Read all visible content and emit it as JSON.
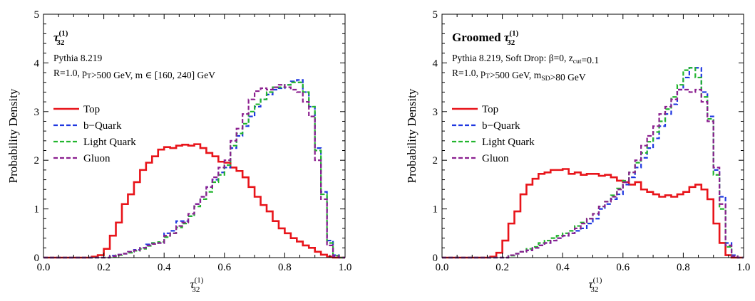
{
  "charts": [
    {
      "panel": "left",
      "title": {
        "prefix": "",
        "tau": "τ",
        "sub": "32",
        "sup": "(1)"
      },
      "annotations": [
        "Pythia 8.219",
        "R=1.0, p_T>500 GeV, m ∈ [160, 240] GeV"
      ],
      "ylabel": "Probability Density",
      "xlabel": {
        "tau": "τ",
        "sub": "32",
        "sup": "(1)"
      }
    },
    {
      "panel": "right",
      "title": {
        "prefix": "Groomed ",
        "tau": "τ",
        "sub": "32",
        "sup": "(1)"
      },
      "annotations": [
        "Pythia 8.219, Soft Drop: β=0, z_cut=0.1",
        "R=1.0, p_T>500 GeV, m_SD>80 GeV"
      ],
      "ylabel": "Probability Density",
      "xlabel": {
        "tau": "τ",
        "sub": "32",
        "sup": "(1)"
      }
    }
  ],
  "chart_data": [
    {
      "type": "line",
      "step": true,
      "xlim": [
        0.0,
        1.0
      ],
      "ylim": [
        0,
        5
      ],
      "xticks": [
        "0.0",
        "0.2",
        "0.4",
        "0.6",
        "0.8",
        "1.0"
      ],
      "yticks": [
        "0",
        "1",
        "2",
        "3",
        "4",
        "5"
      ],
      "bin_edges": [
        0.0,
        0.02,
        0.04,
        0.06,
        0.08,
        0.1,
        0.12,
        0.14,
        0.16,
        0.18,
        0.2,
        0.22,
        0.24,
        0.26,
        0.28,
        0.3,
        0.32,
        0.34,
        0.36,
        0.38,
        0.4,
        0.42,
        0.44,
        0.46,
        0.48,
        0.5,
        0.52,
        0.54,
        0.56,
        0.58,
        0.6,
        0.62,
        0.64,
        0.66,
        0.68,
        0.7,
        0.72,
        0.74,
        0.76,
        0.78,
        0.8,
        0.82,
        0.84,
        0.86,
        0.88,
        0.9,
        0.92,
        0.94,
        0.96,
        0.98,
        1.0
      ],
      "legend_position": "left",
      "series": [
        {
          "name": "Top",
          "color": "#e8141a",
          "dash": "solid",
          "values": [
            0,
            0,
            0,
            0,
            0,
            0,
            0,
            0,
            0.02,
            0.05,
            0.18,
            0.45,
            0.72,
            1.1,
            1.3,
            1.55,
            1.8,
            1.95,
            2.08,
            2.22,
            2.27,
            2.25,
            2.3,
            2.32,
            2.3,
            2.33,
            2.25,
            2.15,
            2.08,
            1.97,
            1.95,
            1.85,
            1.78,
            1.65,
            1.45,
            1.25,
            1.08,
            0.95,
            0.75,
            0.6,
            0.5,
            0.4,
            0.33,
            0.25,
            0.2,
            0.12,
            0.06,
            0.02,
            0,
            0
          ]
        },
        {
          "name": "b−Quark",
          "color": "#1f37e0",
          "dash": "dashed",
          "values": [
            0,
            0,
            0,
            0,
            0,
            0,
            0,
            0,
            0,
            0,
            0,
            0.04,
            0.06,
            0.08,
            0.12,
            0.16,
            0.2,
            0.27,
            0.3,
            0.3,
            0.5,
            0.55,
            0.75,
            0.75,
            0.85,
            1.1,
            1.25,
            1.45,
            1.6,
            1.75,
            1.85,
            2.25,
            2.5,
            2.7,
            2.9,
            3.1,
            3.25,
            3.35,
            3.45,
            3.48,
            3.55,
            3.62,
            3.65,
            3.4,
            3.1,
            2.25,
            1.35,
            0.35,
            0.05,
            0
          ]
        },
        {
          "name": "Light Quark",
          "color": "#22b52e",
          "dash": "dashed",
          "values": [
            0,
            0,
            0,
            0,
            0,
            0,
            0,
            0,
            0,
            0,
            0,
            0.02,
            0.05,
            0.08,
            0.1,
            0.14,
            0.18,
            0.24,
            0.3,
            0.32,
            0.42,
            0.5,
            0.62,
            0.7,
            0.85,
            1.05,
            1.2,
            1.35,
            1.55,
            1.7,
            1.9,
            2.3,
            2.55,
            2.75,
            3.0,
            3.15,
            3.25,
            3.4,
            3.5,
            3.5,
            3.55,
            3.6,
            3.6,
            3.4,
            3.1,
            2.2,
            1.3,
            0.3,
            0.04,
            0
          ]
        },
        {
          "name": "Gluon",
          "color": "#8b1f8f",
          "dash": "dashed",
          "values": [
            0,
            0,
            0,
            0,
            0,
            0,
            0,
            0,
            0,
            0,
            0,
            0.03,
            0.06,
            0.08,
            0.12,
            0.15,
            0.2,
            0.25,
            0.28,
            0.3,
            0.45,
            0.5,
            0.65,
            0.72,
            0.9,
            1.1,
            1.25,
            1.45,
            1.65,
            1.85,
            2.0,
            2.4,
            2.65,
            2.95,
            3.25,
            3.42,
            3.48,
            3.45,
            3.5,
            3.55,
            3.5,
            3.45,
            3.4,
            3.2,
            2.9,
            2.0,
            1.2,
            0.25,
            0.03,
            0
          ]
        }
      ]
    },
    {
      "type": "line",
      "step": true,
      "xlim": [
        0.0,
        1.0
      ],
      "ylim": [
        0,
        5
      ],
      "xticks": [
        "0.0",
        "0.2",
        "0.4",
        "0.6",
        "0.8",
        "1.0"
      ],
      "yticks": [
        "0",
        "1",
        "2",
        "3",
        "4",
        "5"
      ],
      "bin_edges": [
        0.0,
        0.02,
        0.04,
        0.06,
        0.08,
        0.1,
        0.12,
        0.14,
        0.16,
        0.18,
        0.2,
        0.22,
        0.24,
        0.26,
        0.28,
        0.3,
        0.32,
        0.34,
        0.36,
        0.38,
        0.4,
        0.42,
        0.44,
        0.46,
        0.48,
        0.5,
        0.52,
        0.54,
        0.56,
        0.58,
        0.6,
        0.62,
        0.64,
        0.66,
        0.68,
        0.7,
        0.72,
        0.74,
        0.76,
        0.78,
        0.8,
        0.82,
        0.84,
        0.86,
        0.88,
        0.9,
        0.92,
        0.94,
        0.96,
        0.98,
        1.0
      ],
      "legend_position": "left",
      "series": [
        {
          "name": "Top",
          "color": "#e8141a",
          "dash": "solid",
          "values": [
            0,
            0,
            0,
            0,
            0,
            0,
            0,
            0,
            0.02,
            0.1,
            0.35,
            0.7,
            0.95,
            1.3,
            1.5,
            1.62,
            1.72,
            1.75,
            1.8,
            1.8,
            1.82,
            1.72,
            1.75,
            1.7,
            1.72,
            1.72,
            1.68,
            1.7,
            1.65,
            1.58,
            1.55,
            1.5,
            1.55,
            1.4,
            1.35,
            1.3,
            1.25,
            1.28,
            1.25,
            1.3,
            1.35,
            1.45,
            1.5,
            1.4,
            1.2,
            0.7,
            0.3,
            0.05,
            0,
            0
          ]
        },
        {
          "name": "b−Quark",
          "color": "#1f37e0",
          "dash": "dashed",
          "values": [
            0,
            0,
            0,
            0,
            0,
            0,
            0,
            0,
            0,
            0,
            0,
            0.05,
            0.08,
            0.12,
            0.15,
            0.2,
            0.25,
            0.3,
            0.35,
            0.4,
            0.45,
            0.5,
            0.55,
            0.6,
            0.7,
            0.8,
            1.0,
            1.1,
            1.2,
            1.3,
            1.5,
            1.65,
            1.85,
            2.05,
            2.25,
            2.45,
            2.7,
            2.95,
            3.15,
            3.45,
            3.7,
            3.9,
            3.9,
            3.4,
            2.9,
            1.8,
            1.25,
            0.3,
            0.05,
            0
          ]
        },
        {
          "name": "Light Quark",
          "color": "#22b52e",
          "dash": "dashed",
          "values": [
            0,
            0,
            0,
            0,
            0,
            0,
            0,
            0,
            0,
            0,
            0,
            0.04,
            0.08,
            0.12,
            0.18,
            0.22,
            0.3,
            0.35,
            0.4,
            0.45,
            0.5,
            0.55,
            0.65,
            0.72,
            0.8,
            0.9,
            1.05,
            1.15,
            1.28,
            1.42,
            1.58,
            1.75,
            1.95,
            2.15,
            2.38,
            2.58,
            2.8,
            3.05,
            3.3,
            3.55,
            3.85,
            3.9,
            3.7,
            3.3,
            2.85,
            1.7,
            1.0,
            0.22,
            0.03,
            0
          ]
        },
        {
          "name": "Gluon",
          "color": "#8b1f8f",
          "dash": "dashed",
          "values": [
            0,
            0,
            0,
            0,
            0,
            0,
            0,
            0,
            0,
            0,
            0,
            0.05,
            0.08,
            0.12,
            0.15,
            0.2,
            0.25,
            0.3,
            0.35,
            0.4,
            0.45,
            0.5,
            0.6,
            0.7,
            0.8,
            0.9,
            1.05,
            1.15,
            1.25,
            1.4,
            1.55,
            1.75,
            2.0,
            2.3,
            2.5,
            2.7,
            2.95,
            3.1,
            3.25,
            3.45,
            3.45,
            3.4,
            3.45,
            3.2,
            2.8,
            1.85,
            1.1,
            0.25,
            0.03,
            0
          ]
        }
      ]
    }
  ]
}
